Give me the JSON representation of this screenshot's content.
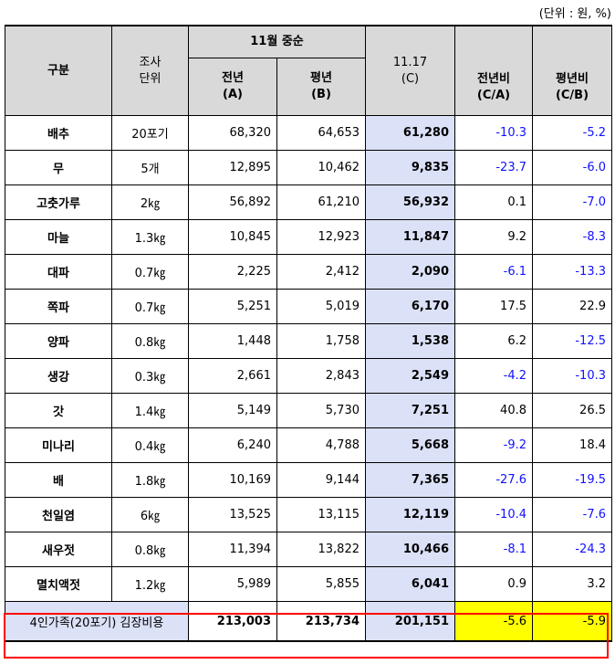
{
  "unit_note": "(단위 : 원, %)",
  "header": {
    "category": "구분",
    "unit": "조사\n단위",
    "group": "11월 중순",
    "prev_year": "전년\n(A)",
    "avg_year": "평년\n(B)",
    "current": "11.17\n(C)",
    "ratio_prev": "전년비\n(C/A)",
    "ratio_avg": "평년비\n(C/B)"
  },
  "rows": [
    {
      "name": "배추",
      "unit": "20포기",
      "a": "68,320",
      "b": "64,653",
      "c": "61,280",
      "ca": "-10.3",
      "cb": "-5.2"
    },
    {
      "name": "무",
      "unit": "5개",
      "a": "12,895",
      "b": "10,462",
      "c": "9,835",
      "ca": "-23.7",
      "cb": "-6.0"
    },
    {
      "name": "고춧가루",
      "unit": "2㎏",
      "a": "56,892",
      "b": "61,210",
      "c": "56,932",
      "ca": "0.1",
      "cb": "-7.0"
    },
    {
      "name": "마늘",
      "unit": "1.3㎏",
      "a": "10,845",
      "b": "12,923",
      "c": "11,847",
      "ca": "9.2",
      "cb": "-8.3"
    },
    {
      "name": "대파",
      "unit": "0.7㎏",
      "a": "2,225",
      "b": "2,412",
      "c": "2,090",
      "ca": "-6.1",
      "cb": "-13.3"
    },
    {
      "name": "쪽파",
      "unit": "0.7㎏",
      "a": "5,251",
      "b": "5,019",
      "c": "6,170",
      "ca": "17.5",
      "cb": "22.9"
    },
    {
      "name": "양파",
      "unit": "0.8㎏",
      "a": "1,448",
      "b": "1,758",
      "c": "1,538",
      "ca": "6.2",
      "cb": "-12.5"
    },
    {
      "name": "생강",
      "unit": "0.3㎏",
      "a": "2,661",
      "b": "2,843",
      "c": "2,549",
      "ca": "-4.2",
      "cb": "-10.3"
    },
    {
      "name": "갓",
      "unit": "1.4㎏",
      "a": "5,149",
      "b": "5,730",
      "c": "7,251",
      "ca": "40.8",
      "cb": "26.5"
    },
    {
      "name": "미나리",
      "unit": "0.4㎏",
      "a": "6,240",
      "b": "4,788",
      "c": "5,668",
      "ca": "-9.2",
      "cb": "18.4"
    },
    {
      "name": "배",
      "unit": "1.8㎏",
      "a": "10,169",
      "b": "9,144",
      "c": "7,365",
      "ca": "-27.6",
      "cb": "-19.5"
    },
    {
      "name": "천일염",
      "unit": "6㎏",
      "a": "13,525",
      "b": "13,115",
      "c": "12,119",
      "ca": "-10.4",
      "cb": "-7.6"
    },
    {
      "name": "새우젓",
      "unit": "0.8㎏",
      "a": "11,394",
      "b": "13,822",
      "c": "10,466",
      "ca": "-8.1",
      "cb": "-24.3"
    },
    {
      "name": "멸치액젓",
      "unit": "1.2㎏",
      "a": "5,989",
      "b": "5,855",
      "c": "6,041",
      "ca": "0.9",
      "cb": "3.2"
    }
  ],
  "total": {
    "name": "4인가족(20포기) 김장비용",
    "a": "213,003",
    "b": "213,734",
    "c": "201,151",
    "ca": "-5.6",
    "cb": "-5.9"
  },
  "colors": {
    "header_bg": "#d9d9d9",
    "current_bg": "#dbe1f7",
    "negative_text": "#1010ff",
    "highlight": "#ffff00",
    "total_border": "#ff0000"
  }
}
